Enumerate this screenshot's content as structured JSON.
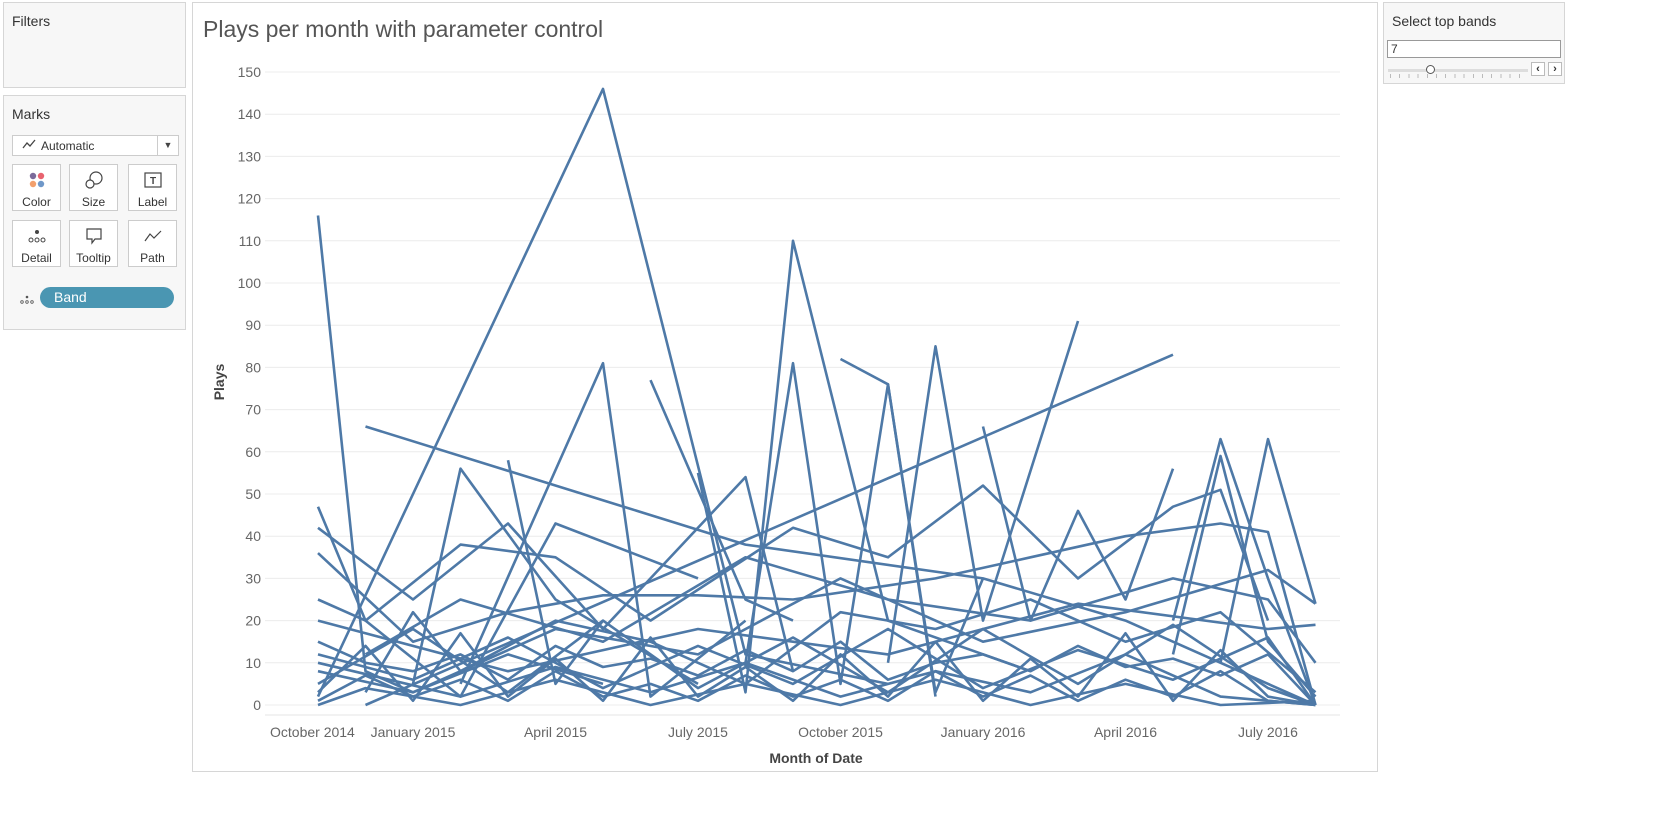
{
  "filters": {
    "title": "Filters"
  },
  "marks": {
    "title": "Marks",
    "mark_type": "Automatic",
    "buttons": [
      {
        "label": "Color",
        "icon": "color-icon"
      },
      {
        "label": "Size",
        "icon": "size-icon"
      },
      {
        "label": "Label",
        "icon": "label-icon"
      },
      {
        "label": "Detail",
        "icon": "detail-icon"
      },
      {
        "label": "Tooltip",
        "icon": "tooltip-icon"
      },
      {
        "label": "Path",
        "icon": "path-icon"
      }
    ],
    "pill": "Band"
  },
  "parameter": {
    "title": "Select top bands",
    "value": "7",
    "fraction": 0.3
  },
  "colors": {
    "line": "#4e79a7",
    "pill": "#4a96b2"
  },
  "chart_data": {
    "type": "line",
    "title": "Plays per month with parameter control",
    "xlabel": "Month of Date",
    "ylabel": "Plays",
    "x_unit": "month index (0 = November 2014)",
    "xlim": [
      -1,
      21.5
    ],
    "ylim": [
      0,
      150
    ],
    "yticks": [
      0,
      10,
      20,
      30,
      40,
      50,
      60,
      70,
      80,
      90,
      100,
      110,
      120,
      130,
      140,
      150
    ],
    "xticks": [
      {
        "label": "October 2014",
        "x": -1
      },
      {
        "label": "January 2015",
        "x": 2
      },
      {
        "label": "April 2015",
        "x": 5
      },
      {
        "label": "July 2015",
        "x": 8
      },
      {
        "label": "October 2015",
        "x": 11
      },
      {
        "label": "January 2016",
        "x": 14
      },
      {
        "label": "April 2016",
        "x": 17
      },
      {
        "label": "July 2016",
        "x": 20
      }
    ],
    "grid": "horizontal",
    "series": [
      {
        "points": [
          [
            0,
            116
          ],
          [
            1,
            8
          ],
          [
            2,
            3
          ],
          [
            4,
            12
          ],
          [
            6,
            5
          ]
        ]
      },
      {
        "points": [
          [
            0,
            2
          ],
          [
            6,
            146
          ],
          [
            9,
            12
          ],
          [
            12,
            5
          ]
        ]
      },
      {
        "points": [
          [
            1,
            66
          ],
          [
            9,
            38
          ],
          [
            14,
            30
          ],
          [
            17,
            20
          ],
          [
            21,
            0
          ]
        ]
      },
      {
        "points": [
          [
            3,
            5
          ],
          [
            6,
            81
          ],
          [
            7,
            2
          ],
          [
            9,
            20
          ]
        ]
      },
      {
        "points": [
          [
            7,
            77
          ],
          [
            9,
            25
          ],
          [
            10,
            20
          ]
        ]
      },
      {
        "points": [
          [
            8,
            55
          ],
          [
            9,
            3
          ],
          [
            10,
            110
          ],
          [
            12,
            20
          ],
          [
            15,
            8
          ]
        ]
      },
      {
        "points": [
          [
            9,
            10
          ],
          [
            10,
            81
          ],
          [
            11,
            5
          ],
          [
            12,
            76
          ],
          [
            13,
            3
          ],
          [
            14,
            30
          ]
        ]
      },
      {
        "points": [
          [
            11,
            82
          ],
          [
            12,
            76
          ],
          [
            13,
            2
          ]
        ]
      },
      {
        "points": [
          [
            1,
            0
          ],
          [
            18,
            83
          ]
        ]
      },
      {
        "points": [
          [
            12,
            10
          ],
          [
            13,
            85
          ],
          [
            14,
            20
          ],
          [
            16,
            91
          ]
        ]
      },
      {
        "points": [
          [
            18,
            20
          ],
          [
            19,
            63
          ],
          [
            20,
            30
          ],
          [
            21,
            0
          ]
        ]
      },
      {
        "points": [
          [
            19,
            10
          ],
          [
            20,
            63
          ],
          [
            21,
            24
          ]
        ]
      },
      {
        "points": [
          [
            18,
            12
          ],
          [
            19,
            59
          ],
          [
            20,
            15
          ],
          [
            21,
            2
          ]
        ]
      },
      {
        "points": [
          [
            2,
            5
          ],
          [
            3,
            56
          ],
          [
            5,
            25
          ],
          [
            8,
            5
          ]
        ]
      },
      {
        "points": [
          [
            4,
            58
          ],
          [
            5,
            5
          ],
          [
            6,
            20
          ]
        ]
      },
      {
        "points": [
          [
            0,
            47
          ],
          [
            1,
            20
          ],
          [
            3,
            2
          ],
          [
            5,
            43
          ],
          [
            8,
            30
          ]
        ]
      },
      {
        "points": [
          [
            0,
            42
          ],
          [
            2,
            25
          ],
          [
            4,
            43
          ],
          [
            6,
            18
          ],
          [
            9,
            54
          ],
          [
            10,
            8
          ]
        ]
      },
      {
        "points": [
          [
            14,
            66
          ],
          [
            15,
            20
          ],
          [
            16,
            46
          ],
          [
            17,
            25
          ],
          [
            18,
            56
          ]
        ]
      },
      {
        "points": [
          [
            0,
            25
          ],
          [
            1,
            20
          ],
          [
            3,
            38
          ],
          [
            5,
            35
          ],
          [
            7,
            20
          ],
          [
            10,
            42
          ],
          [
            12,
            35
          ],
          [
            14,
            52
          ],
          [
            16,
            30
          ],
          [
            18,
            47
          ],
          [
            19,
            51
          ],
          [
            20,
            20
          ]
        ]
      },
      {
        "points": [
          [
            0,
            36
          ],
          [
            2,
            15
          ],
          [
            4,
            22
          ],
          [
            6,
            26
          ],
          [
            8,
            26
          ],
          [
            10,
            25
          ],
          [
            13,
            30
          ],
          [
            15,
            35
          ],
          [
            17,
            40
          ],
          [
            19,
            43
          ],
          [
            20,
            41
          ],
          [
            21,
            0
          ]
        ]
      },
      {
        "points": [
          [
            0,
            15
          ],
          [
            1,
            10
          ],
          [
            2,
            8
          ],
          [
            3,
            12
          ],
          [
            4,
            6
          ],
          [
            5,
            14
          ],
          [
            6,
            9
          ],
          [
            7,
            11
          ],
          [
            8,
            7
          ],
          [
            9,
            13
          ],
          [
            10,
            8
          ],
          [
            11,
            15
          ],
          [
            12,
            6
          ],
          [
            13,
            10
          ],
          [
            14,
            12
          ],
          [
            15,
            8
          ],
          [
            16,
            14
          ],
          [
            17,
            9
          ],
          [
            18,
            11
          ],
          [
            19,
            7
          ],
          [
            20,
            12
          ],
          [
            21,
            0
          ]
        ]
      },
      {
        "points": [
          [
            0,
            5
          ],
          [
            2,
            18
          ],
          [
            4,
            3
          ],
          [
            6,
            20
          ],
          [
            8,
            4
          ],
          [
            10,
            16
          ],
          [
            12,
            3
          ],
          [
            14,
            18
          ],
          [
            16,
            5
          ],
          [
            18,
            19
          ],
          [
            20,
            4
          ],
          [
            21,
            0
          ]
        ]
      },
      {
        "points": [
          [
            0,
            10
          ],
          [
            3,
            2
          ],
          [
            5,
            9
          ],
          [
            7,
            3
          ],
          [
            9,
            10
          ],
          [
            11,
            2
          ],
          [
            13,
            8
          ],
          [
            15,
            3
          ],
          [
            17,
            12
          ],
          [
            19,
            2
          ],
          [
            21,
            0
          ]
        ]
      },
      {
        "points": [
          [
            1,
            3
          ],
          [
            2,
            22
          ],
          [
            3,
            8
          ],
          [
            5,
            20
          ],
          [
            7,
            15
          ],
          [
            9,
            5
          ],
          [
            11,
            22
          ],
          [
            13,
            18
          ],
          [
            15,
            25
          ],
          [
            17,
            15
          ],
          [
            19,
            22
          ],
          [
            21,
            3
          ]
        ]
      },
      {
        "points": [
          [
            0,
            20
          ],
          [
            4,
            8
          ],
          [
            8,
            18
          ],
          [
            12,
            12
          ],
          [
            16,
            24
          ],
          [
            20,
            18
          ],
          [
            21,
            19
          ]
        ]
      },
      {
        "points": [
          [
            0,
            0
          ],
          [
            1,
            4
          ],
          [
            3,
            0
          ],
          [
            5,
            6
          ],
          [
            7,
            0
          ],
          [
            9,
            5
          ],
          [
            11,
            0
          ],
          [
            13,
            6
          ],
          [
            15,
            0
          ],
          [
            17,
            5
          ],
          [
            19,
            0
          ],
          [
            21,
            1
          ]
        ]
      },
      {
        "points": [
          [
            1,
            12
          ],
          [
            3,
            25
          ],
          [
            6,
            15
          ],
          [
            9,
            35
          ],
          [
            12,
            25
          ],
          [
            15,
            20
          ],
          [
            18,
            30
          ],
          [
            20,
            25
          ],
          [
            21,
            10
          ]
        ]
      },
      {
        "points": [
          [
            0,
            8
          ],
          [
            2,
            3
          ],
          [
            5,
            18
          ],
          [
            8,
            12
          ],
          [
            11,
            30
          ],
          [
            14,
            15
          ],
          [
            17,
            22
          ],
          [
            20,
            32
          ],
          [
            21,
            24
          ]
        ]
      },
      {
        "points": [
          [
            0,
            3
          ],
          [
            1,
            14
          ],
          [
            2,
            1
          ],
          [
            3,
            17
          ],
          [
            4,
            2
          ],
          [
            5,
            11
          ],
          [
            6,
            1
          ],
          [
            7,
            16
          ],
          [
            8,
            2
          ],
          [
            9,
            9
          ],
          [
            10,
            1
          ],
          [
            11,
            12
          ],
          [
            12,
            2
          ],
          [
            13,
            15
          ],
          [
            14,
            1
          ],
          [
            15,
            11
          ],
          [
            16,
            2
          ],
          [
            17,
            17
          ],
          [
            18,
            1
          ],
          [
            19,
            13
          ],
          [
            20,
            2
          ],
          [
            21,
            0
          ]
        ]
      },
      {
        "points": [
          [
            0,
            12
          ],
          [
            2,
            6
          ],
          [
            4,
            16
          ],
          [
            6,
            4
          ],
          [
            8,
            14
          ],
          [
            10,
            5
          ],
          [
            12,
            18
          ],
          [
            14,
            4
          ],
          [
            16,
            13
          ],
          [
            18,
            6
          ],
          [
            20,
            16
          ],
          [
            21,
            0
          ]
        ]
      },
      {
        "points": [
          [
            0,
            1
          ],
          [
            1,
            7
          ],
          [
            2,
            2
          ],
          [
            3,
            6
          ],
          [
            4,
            1
          ],
          [
            5,
            8
          ],
          [
            6,
            2
          ],
          [
            7,
            5
          ],
          [
            8,
            1
          ],
          [
            9,
            7
          ],
          [
            10,
            2
          ],
          [
            11,
            6
          ],
          [
            12,
            1
          ],
          [
            13,
            8
          ],
          [
            14,
            2
          ],
          [
            15,
            7
          ],
          [
            16,
            1
          ],
          [
            17,
            6
          ],
          [
            18,
            2
          ],
          [
            19,
            8
          ],
          [
            20,
            1
          ],
          [
            21,
            0
          ]
        ]
      }
    ]
  }
}
